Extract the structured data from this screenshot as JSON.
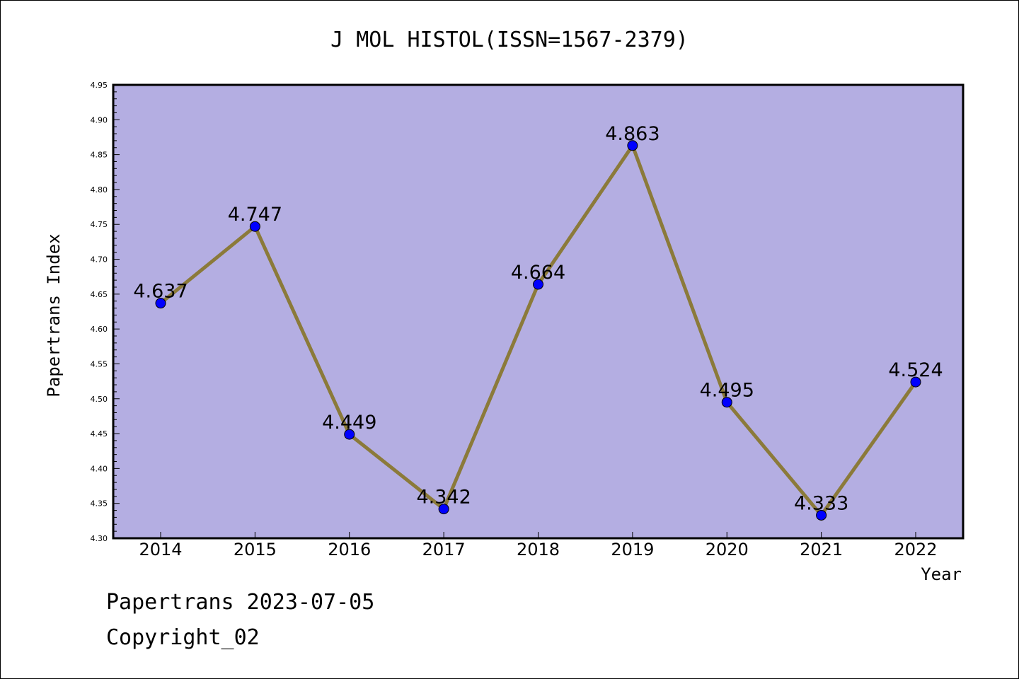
{
  "chart_data": {
    "type": "line",
    "title": "J MOL HISTOL(ISSN=1567-2379)",
    "xlabel": "Year",
    "ylabel": "Papertrans Index",
    "categories": [
      "2014",
      "2015",
      "2016",
      "2017",
      "2018",
      "2019",
      "2020",
      "2021",
      "2022"
    ],
    "series": [
      {
        "values": [
          4.637,
          4.747,
          4.449,
          4.342,
          4.664,
          4.863,
          4.495,
          4.333,
          4.524
        ],
        "labels": [
          "4.637",
          "4.747",
          "4.449",
          "4.342",
          "4.664",
          "4.863",
          "4.495",
          "4.333",
          "4.524"
        ],
        "line_color": "#8b7a3a",
        "marker_color": "#0000ff"
      }
    ],
    "ylim": [
      4.3,
      4.95
    ],
    "yticks": [
      "4.30",
      "4.35",
      "4.40",
      "4.45",
      "4.50",
      "4.55",
      "4.60",
      "4.65",
      "4.70",
      "4.75",
      "4.80",
      "4.85",
      "4.90",
      "4.95"
    ],
    "plot_background": "#b4aee2",
    "grid": false,
    "legend": "none"
  },
  "footer": {
    "line1": "Papertrans 2023-07-05",
    "line2": "Copyright_02"
  }
}
